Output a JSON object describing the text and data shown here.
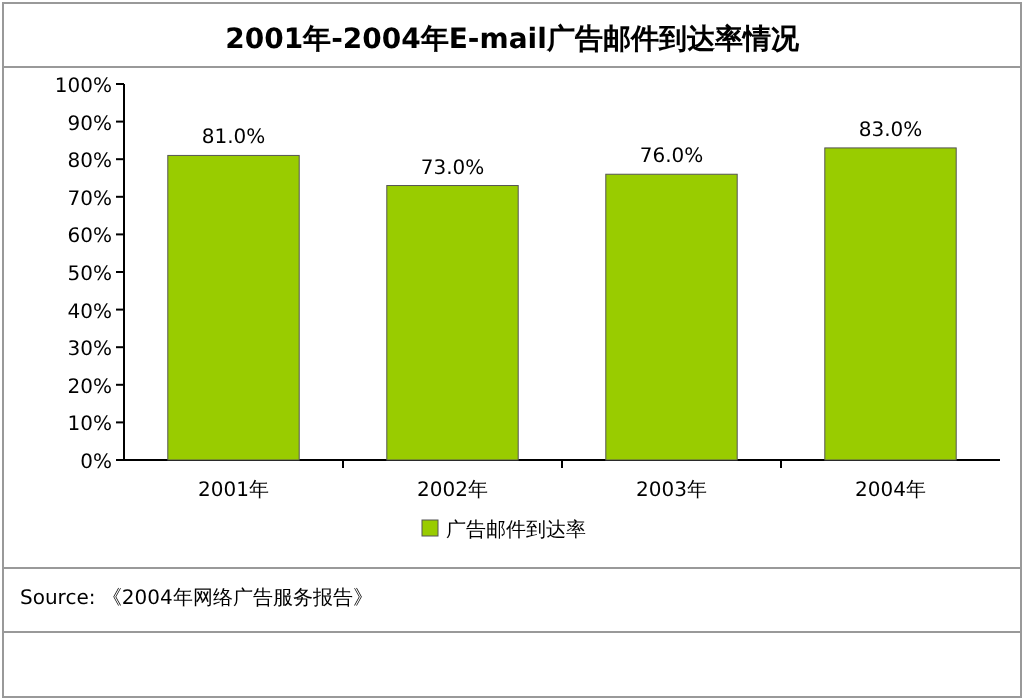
{
  "chart_data": {
    "type": "bar",
    "title": "2001年-2004年E-mail广告邮件到达率情况",
    "categories": [
      "2001年",
      "2002年",
      "2003年",
      "2004年"
    ],
    "series": [
      {
        "name": "广告邮件到达率",
        "color": "#99cc00",
        "values": [
          81,
          73,
          76,
          83
        ],
        "value_labels": [
          "81.0%",
          "73.0%",
          "76.0%",
          "83.0%"
        ]
      }
    ],
    "ylim": [
      0,
      100
    ],
    "yticks": [
      {
        "value": 0,
        "label": "0%"
      },
      {
        "value": 10,
        "label": "10%"
      },
      {
        "value": 20,
        "label": "20%"
      },
      {
        "value": 30,
        "label": "30%"
      },
      {
        "value": 40,
        "label": "40%"
      },
      {
        "value": 50,
        "label": "50%"
      },
      {
        "value": 60,
        "label": "60%"
      },
      {
        "value": 70,
        "label": "70%"
      },
      {
        "value": 80,
        "label": "80%"
      },
      {
        "value": 90,
        "label": "90%"
      },
      {
        "value": 100,
        "label": "100%"
      }
    ],
    "legend": "bottom",
    "annotations": [
      "Source: 《2004年网络广告服务报告》"
    ]
  }
}
